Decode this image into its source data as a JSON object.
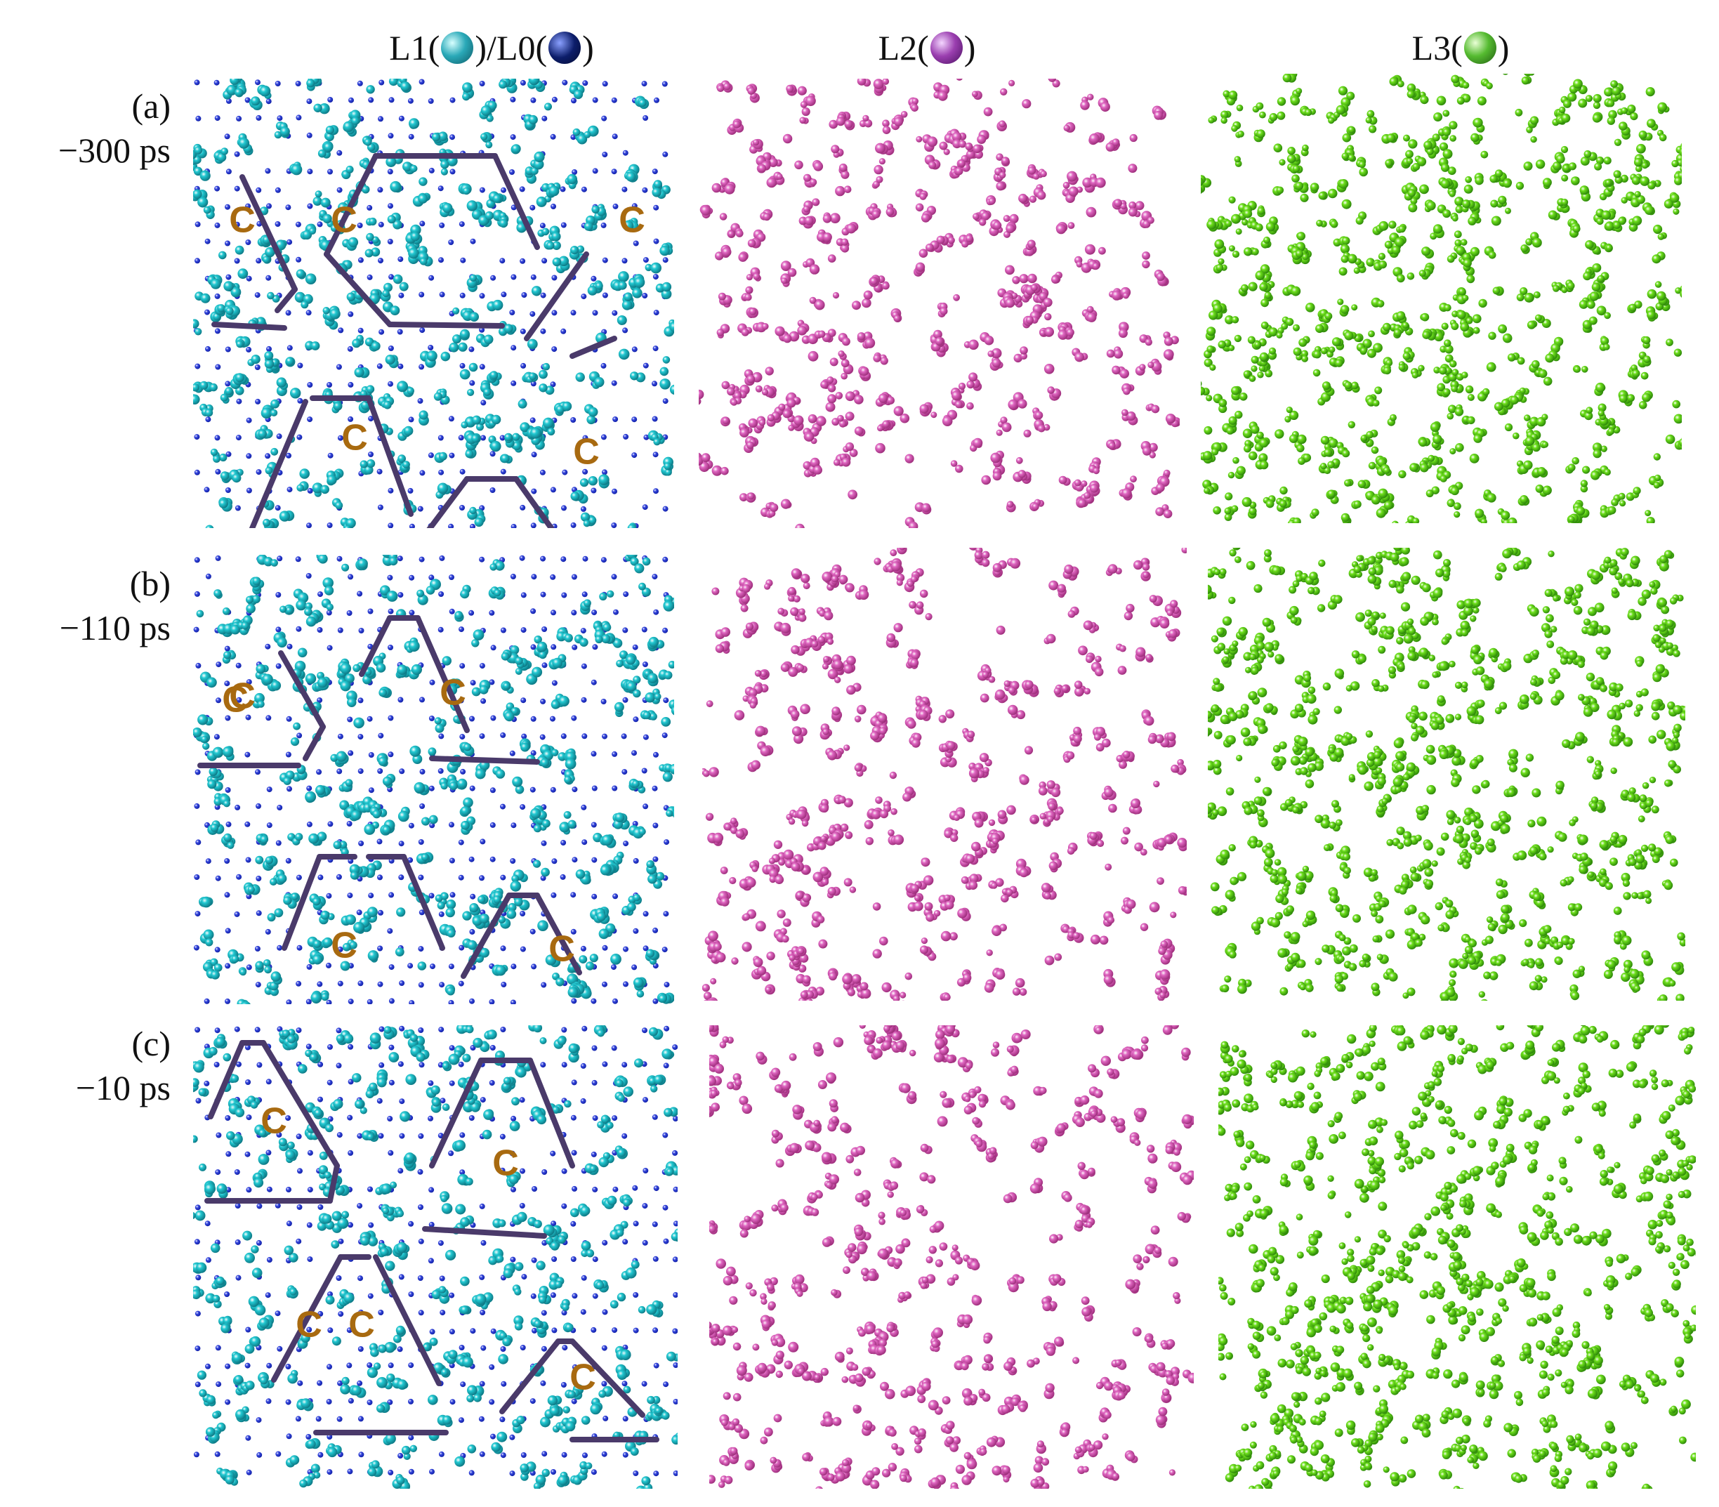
{
  "figure": {
    "columns": [
      {
        "id": "l1",
        "prefix": "L1(",
        "suffix": ")/L0(",
        "end": ")",
        "ball_color_1": "#2aa9b8",
        "ball_color_2": "#0c1d6a"
      },
      {
        "id": "l2",
        "prefix": "L2(",
        "suffix": ")",
        "ball_color": "#9b3fb0"
      },
      {
        "id": "l3",
        "prefix": "L3(",
        "suffix": ")",
        "ball_color": "#55bb30"
      }
    ],
    "rows": [
      {
        "label": "(a)",
        "time": "−300 ps"
      },
      {
        "label": "(b)",
        "time": "−110 ps"
      },
      {
        "label": "(c)",
        "time": "−10 ps"
      }
    ],
    "region_marker": "C",
    "colors": {
      "l1_particle": "#22c9d2",
      "l0_particle": "#1020a8",
      "l2_particle": "#e067c2",
      "l3_particle": "#6ee01c",
      "domain_line": "#4a3a6a",
      "marker": "#a86a10"
    }
  }
}
